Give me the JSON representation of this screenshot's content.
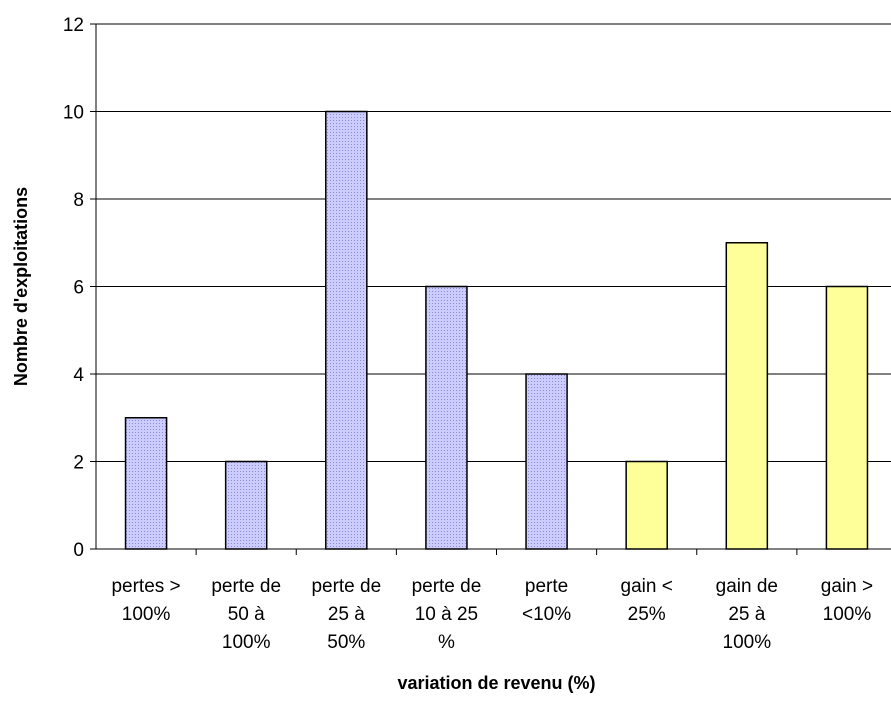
{
  "chart_data": {
    "type": "bar",
    "title": "",
    "xlabel": "variation de revenu (%)",
    "ylabel": "Nombre d'exploitations",
    "ylim": [
      0,
      12
    ],
    "y_ticks": [
      "0",
      "2",
      "4",
      "6",
      "8",
      "10",
      "12"
    ],
    "grid": true,
    "categories": [
      [
        "pertes >",
        "100%"
      ],
      [
        "perte de",
        "50 à",
        "100%"
      ],
      [
        "perte de",
        "25 à",
        "50%"
      ],
      [
        "perte de",
        "10 à 25",
        "%"
      ],
      [
        "perte",
        "<10%"
      ],
      [
        "gain <",
        "25%"
      ],
      [
        "gain de",
        "25 à",
        "100%"
      ],
      [
        "gain >",
        "100%"
      ]
    ],
    "values": [
      3,
      2,
      10,
      6,
      4,
      2,
      7,
      6
    ],
    "bar_colors": [
      "#ccccff",
      "#ccccff",
      "#ccccff",
      "#ccccff",
      "#ccccff",
      "#ffff99",
      "#ffff99",
      "#ffff99"
    ],
    "bar_patterns": [
      "dotted",
      "dotted",
      "dotted",
      "dotted",
      "dotted",
      "solid",
      "solid",
      "solid"
    ]
  }
}
